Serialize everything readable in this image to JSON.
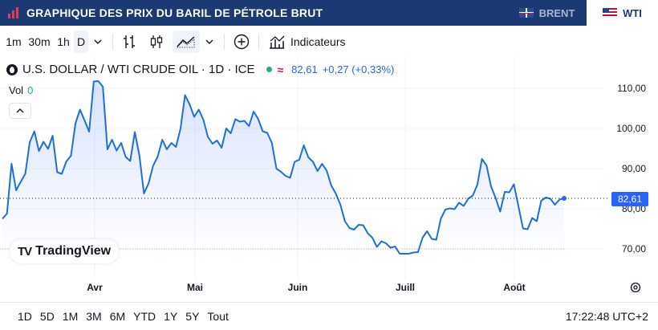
{
  "header": {
    "title": "GRAPHIQUE DES PRIX DU BARIL DE PÉTROLE BRUT",
    "tabs": [
      {
        "label": "BRENT",
        "active": false
      },
      {
        "label": "WTI",
        "active": true
      }
    ],
    "brand_color": "#1b3a73"
  },
  "toolbar": {
    "intervals": [
      "1m",
      "30m",
      "1h",
      "D"
    ],
    "selected_interval": "D",
    "indicators_label": "Indicateurs"
  },
  "legend": {
    "symbol": "U.S. DOLLAR / WTI CRUDE OIL · 1D · ICE",
    "price": "82,61",
    "change": "+0,27 (+0,33%)",
    "vol_label": "Vol",
    "vol_value": "0"
  },
  "chart_data": {
    "type": "area",
    "x_labels": [
      "Avr",
      "Mai",
      "Juin",
      "Juill",
      "Août"
    ],
    "y_ticks": [
      "110,00",
      "100,00",
      "90,00",
      "80,00",
      "70,00"
    ],
    "ylim": [
      65,
      113
    ],
    "last_price_label": "82,61",
    "line_color": "#1e6fd9",
    "values": [
      77.5,
      78.8,
      91.2,
      84.6,
      86.7,
      88.7,
      96.6,
      99.3,
      94.4,
      96.7,
      94.9,
      98.2,
      89.1,
      88.7,
      91.8,
      93.2,
      101.3,
      104.7,
      102.0,
      99.2,
      111.7,
      111.8,
      110.4,
      94.8,
      97.2,
      94.5,
      96.4,
      92.9,
      91.9,
      99.1,
      93.3,
      83.8,
      86.3,
      90.7,
      93.0,
      97.2,
      94.8,
      96.4,
      95.4,
      100.0,
      108.3,
      106.0,
      102.9,
      104.7,
      102.2,
      97.9,
      96.2,
      97.0,
      95.2,
      100.0,
      98.8,
      102.3,
      101.7,
      101.9,
      100.6,
      104.2,
      102.4,
      99.3,
      98.9,
      96.4,
      90.0,
      89.2,
      88.2,
      87.7,
      91.7,
      92.2,
      95.8,
      92.8,
      91.7,
      89.4,
      91.2,
      89.5,
      85.8,
      83.8,
      81.1,
      76.9,
      75.2,
      74.8,
      76.0,
      75.9,
      73.9,
      72.8,
      70.5,
      71.9,
      71.4,
      70.3,
      70.6,
      68.8,
      68.8,
      68.8,
      69.1,
      69.2,
      72.8,
      74.4,
      72.5,
      72.3,
      77.5,
      79.8,
      80.1,
      79.9,
      81.5,
      80.7,
      82.5,
      83.3,
      86.0,
      92.4,
      90.8,
      85.6,
      82.7,
      79.3,
      84.2,
      84.1,
      86.1,
      80.6,
      75.1,
      74.9,
      77.7,
      76.9,
      82.0,
      82.8,
      82.5,
      81.0,
      82.3,
      82.61
    ],
    "grid": true
  },
  "bottom": {
    "ranges": [
      "1D",
      "5D",
      "1M",
      "3M",
      "6M",
      "YTD",
      "1Y",
      "5Y",
      "Tout"
    ],
    "clock": "17:22:48 UTC+2"
  }
}
